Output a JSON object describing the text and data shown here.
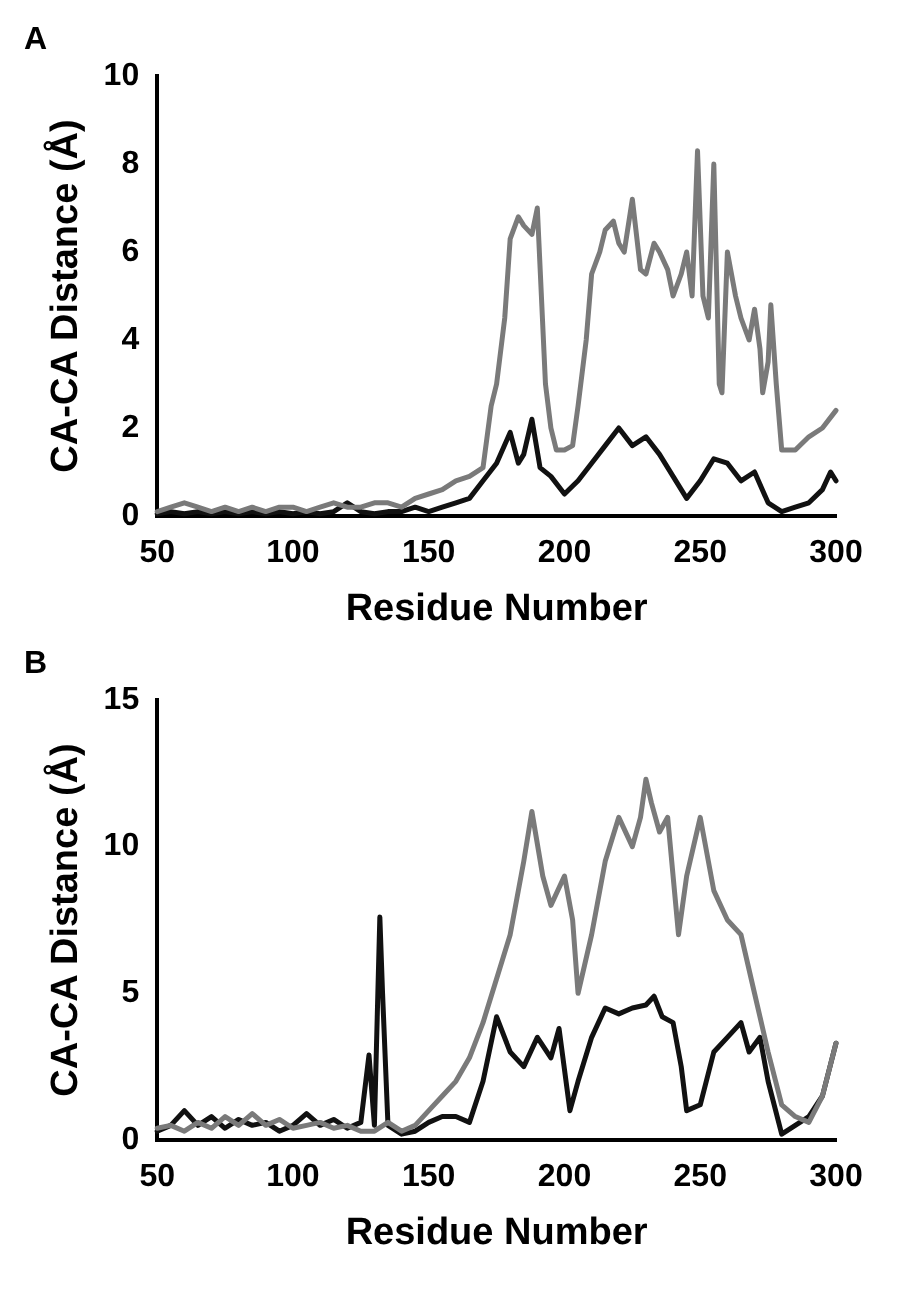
{
  "chart_data": [
    {
      "type": "line",
      "annotations": [
        "A"
      ],
      "xlabel": "Residue Number",
      "ylabel": "CA-CA Distance (Å)",
      "xlim": [
        50,
        300
      ],
      "xticks": [
        50,
        100,
        150,
        200,
        250,
        300
      ],
      "ylim": [
        0,
        10
      ],
      "yticks": [
        0,
        2,
        4,
        6,
        8,
        10
      ],
      "grid": false,
      "legend": false,
      "marker": "none",
      "line_style": "solid",
      "series": [
        {
          "color": "#7a7a7a",
          "x": [
            50,
            55,
            60,
            65,
            70,
            75,
            80,
            85,
            90,
            95,
            100,
            105,
            110,
            115,
            120,
            125,
            130,
            135,
            140,
            145,
            150,
            155,
            160,
            165,
            170,
            173,
            175,
            178,
            180,
            183,
            185,
            188,
            190,
            193,
            195,
            197,
            200,
            203,
            205,
            208,
            210,
            213,
            215,
            218,
            220,
            222,
            225,
            228,
            230,
            233,
            235,
            238,
            240,
            243,
            245,
            247,
            249,
            251,
            253,
            255,
            257,
            258,
            260,
            263,
            265,
            268,
            270,
            272,
            273,
            275,
            276,
            278,
            280,
            285,
            290,
            295,
            300
          ],
          "values": [
            0.1,
            0.2,
            0.3,
            0.2,
            0.1,
            0.2,
            0.1,
            0.2,
            0.1,
            0.2,
            0.2,
            0.1,
            0.2,
            0.3,
            0.2,
            0.2,
            0.3,
            0.3,
            0.2,
            0.4,
            0.5,
            0.6,
            0.8,
            0.9,
            1.1,
            2.5,
            3.0,
            4.5,
            6.3,
            6.8,
            6.6,
            6.4,
            7.0,
            3.0,
            2.0,
            1.5,
            1.5,
            1.6,
            2.5,
            4.0,
            5.5,
            6.0,
            6.5,
            6.7,
            6.2,
            6.0,
            7.2,
            5.6,
            5.5,
            6.2,
            6.0,
            5.6,
            5.0,
            5.5,
            6.0,
            5.0,
            8.3,
            5.0,
            4.5,
            8.0,
            3.0,
            2.8,
            6.0,
            5.0,
            4.5,
            4.0,
            4.7,
            3.8,
            2.8,
            3.5,
            4.8,
            3.0,
            1.5,
            1.5,
            1.8,
            2.0,
            2.4
          ]
        },
        {
          "color": "#111111",
          "x": [
            50,
            55,
            60,
            65,
            70,
            75,
            80,
            85,
            90,
            95,
            100,
            105,
            110,
            115,
            120,
            125,
            130,
            135,
            140,
            145,
            150,
            155,
            160,
            165,
            170,
            175,
            180,
            183,
            185,
            188,
            191,
            195,
            200,
            205,
            210,
            215,
            220,
            225,
            230,
            235,
            240,
            245,
            250,
            255,
            260,
            265,
            270,
            275,
            280,
            285,
            290,
            295,
            298,
            300
          ],
          "values": [
            0.05,
            0.1,
            0.05,
            0.1,
            0.05,
            0.1,
            0.05,
            0.1,
            0.05,
            0.1,
            0.05,
            0.1,
            0.05,
            0.1,
            0.3,
            0.1,
            0.05,
            0.1,
            0.1,
            0.2,
            0.1,
            0.2,
            0.3,
            0.4,
            0.8,
            1.2,
            1.9,
            1.2,
            1.4,
            2.2,
            1.1,
            0.9,
            0.5,
            0.8,
            1.2,
            1.6,
            2.0,
            1.6,
            1.8,
            1.4,
            0.9,
            0.4,
            0.8,
            1.3,
            1.2,
            0.8,
            1.0,
            0.3,
            0.1,
            0.2,
            0.3,
            0.6,
            1.0,
            0.8
          ]
        }
      ]
    },
    {
      "type": "line",
      "annotations": [
        "B"
      ],
      "xlabel": "Residue Number",
      "ylabel": "CA-CA Distance (Å)",
      "xlim": [
        50,
        300
      ],
      "xticks": [
        50,
        100,
        150,
        200,
        250,
        300
      ],
      "ylim": [
        0,
        15
      ],
      "yticks": [
        0,
        5,
        10,
        15
      ],
      "grid": false,
      "legend": false,
      "marker": "none",
      "line_style": "solid",
      "series": [
        {
          "color": "#7a7a7a",
          "x": [
            50,
            55,
            60,
            65,
            70,
            75,
            80,
            85,
            90,
            95,
            100,
            105,
            110,
            115,
            120,
            125,
            130,
            135,
            140,
            145,
            150,
            155,
            160,
            165,
            170,
            175,
            180,
            185,
            188,
            192,
            195,
            200,
            203,
            205,
            210,
            215,
            220,
            225,
            228,
            230,
            232,
            235,
            238,
            242,
            245,
            250,
            255,
            260,
            265,
            270,
            275,
            280,
            285,
            290,
            295,
            300
          ],
          "values": [
            0.4,
            0.5,
            0.3,
            0.6,
            0.4,
            0.8,
            0.5,
            0.9,
            0.5,
            0.7,
            0.4,
            0.5,
            0.6,
            0.4,
            0.5,
            0.3,
            0.3,
            0.6,
            0.3,
            0.5,
            1.0,
            1.5,
            2.0,
            2.8,
            4.0,
            5.5,
            7.0,
            9.5,
            11.2,
            9.0,
            8.0,
            9.0,
            7.5,
            5.0,
            7.0,
            9.5,
            11.0,
            10.0,
            11.0,
            12.3,
            11.5,
            10.5,
            11.0,
            7.0,
            9.0,
            11.0,
            8.5,
            7.5,
            7.0,
            5.0,
            3.0,
            1.2,
            0.8,
            0.6,
            1.5,
            3.3
          ]
        },
        {
          "color": "#111111",
          "x": [
            50,
            55,
            60,
            65,
            70,
            75,
            80,
            85,
            90,
            95,
            100,
            105,
            110,
            115,
            120,
            125,
            128,
            130,
            132,
            133,
            135,
            140,
            145,
            150,
            155,
            160,
            165,
            170,
            175,
            180,
            185,
            190,
            195,
            198,
            202,
            205,
            210,
            215,
            220,
            225,
            230,
            233,
            236,
            240,
            243,
            245,
            250,
            255,
            260,
            265,
            268,
            272,
            275,
            280,
            285,
            290,
            295,
            300
          ],
          "values": [
            0.3,
            0.5,
            1.0,
            0.5,
            0.8,
            0.4,
            0.7,
            0.5,
            0.6,
            0.3,
            0.5,
            0.9,
            0.5,
            0.7,
            0.4,
            0.6,
            2.9,
            0.5,
            7.6,
            5.0,
            0.5,
            0.2,
            0.3,
            0.6,
            0.8,
            0.8,
            0.6,
            2.0,
            4.2,
            3.0,
            2.5,
            3.5,
            2.8,
            3.8,
            1.0,
            2.0,
            3.5,
            4.5,
            4.3,
            4.5,
            4.6,
            4.9,
            4.2,
            4.0,
            2.5,
            1.0,
            1.2,
            3.0,
            3.5,
            4.0,
            3.0,
            3.5,
            2.0,
            0.2,
            0.5,
            0.8,
            1.5,
            3.3
          ]
        }
      ]
    }
  ]
}
